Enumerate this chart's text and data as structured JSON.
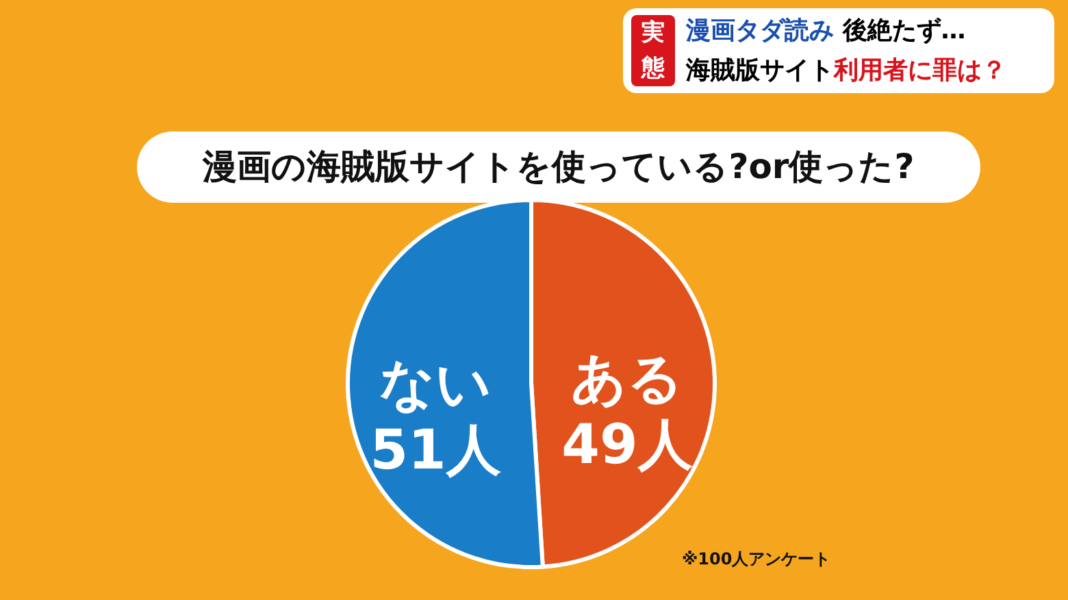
{
  "chart_data": {
    "type": "pie",
    "title": "漫画の海賊版サイトを使っている?or使った?",
    "categories": [
      "ある",
      "ない"
    ],
    "values": [
      49,
      51
    ],
    "value_labels": [
      "49人",
      "51人"
    ],
    "colors": [
      "#e2521c",
      "#1a7dc8"
    ],
    "legend": false,
    "annotations": [
      "実態",
      "漫画タダ読み 後絶たず…",
      "海賊版サイト",
      "利用者に罪は？",
      "※100人アンケート"
    ]
  }
}
